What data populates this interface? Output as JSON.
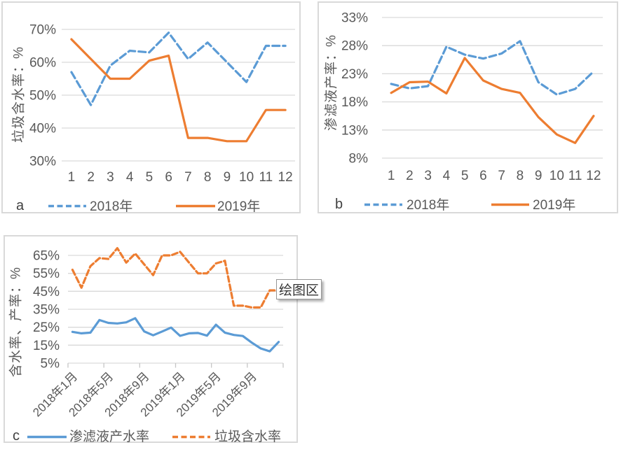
{
  "tooltip": {
    "label": "绘图区"
  },
  "colors": {
    "series_blue": "#5B9BD5",
    "series_orange": "#ED7D31",
    "gridline": "#D9D9D9",
    "axis_text": "#595959",
    "tick_mark": "#C6C6C6"
  },
  "chart_data": [
    {
      "type": "line",
      "panel_label": "a",
      "ylabel": "垃圾含水率：%",
      "xlabel": "",
      "categories": [
        "1",
        "2",
        "3",
        "4",
        "5",
        "6",
        "7",
        "8",
        "9",
        "10",
        "11",
        "12"
      ],
      "yticks": [
        30,
        40,
        50,
        60,
        70
      ],
      "ylim": [
        30,
        70
      ],
      "grid": true,
      "legend_position": "bottom",
      "series": [
        {
          "name": "2018年",
          "color": "#5B9BD5",
          "dashed": true,
          "values": [
            57,
            47,
            59,
            63.5,
            63,
            69,
            61,
            66,
            60,
            54,
            65,
            65
          ]
        },
        {
          "name": "2019年",
          "color": "#ED7D31",
          "dashed": false,
          "values": [
            67,
            61,
            55,
            55,
            60.5,
            62,
            37,
            37,
            36,
            36,
            45.5,
            45.5
          ]
        }
      ]
    },
    {
      "type": "line",
      "panel_label": "b",
      "ylabel": "渗滤液产率：%",
      "xlabel": "",
      "categories": [
        "1",
        "2",
        "3",
        "4",
        "5",
        "6",
        "7",
        "8",
        "9",
        "10",
        "11",
        "12"
      ],
      "yticks": [
        8,
        13,
        18,
        23,
        28,
        33
      ],
      "ylim": [
        8,
        33
      ],
      "grid": true,
      "legend_position": "bottom",
      "series": [
        {
          "name": "2018年",
          "color": "#5B9BD5",
          "dashed": true,
          "values": [
            21.2,
            20.4,
            20.8,
            27.8,
            26.4,
            25.7,
            26.6,
            28.8,
            21.5,
            19.3,
            20.3,
            23.4
          ]
        },
        {
          "name": "2019年",
          "color": "#ED7D31",
          "dashed": false,
          "values": [
            19.6,
            21.5,
            21.6,
            19.5,
            25.8,
            21.8,
            20.3,
            19.6,
            15.3,
            12.2,
            10.7,
            15.5
          ]
        }
      ]
    },
    {
      "type": "line",
      "panel_label": "c",
      "ylabel": "含水率、产率：%",
      "xlabel": "",
      "n_points": 24,
      "xtick_labels": [
        "2018年1月",
        "2018年5月",
        "2018年9月",
        "2019年1月",
        "2019年5月",
        "2019年9月"
      ],
      "xtick_positions": [
        0,
        4,
        8,
        12,
        16,
        20
      ],
      "yticks": [
        5,
        15,
        25,
        35,
        45,
        55,
        65
      ],
      "ylim": [
        5,
        65
      ],
      "grid": true,
      "legend_position": "bottom",
      "series": [
        {
          "name": "渗滤液产水率",
          "color": "#5B9BD5",
          "dashed": false,
          "values": [
            22.4,
            21.6,
            22,
            29,
            27.4,
            27.1,
            27.7,
            30,
            22.7,
            20.5,
            22.6,
            24.8,
            20.2,
            21.6,
            21.8,
            20.3,
            26.4,
            22,
            20.7,
            20.1,
            16.4,
            13.2,
            11.6,
            16.8
          ]
        },
        {
          "name": "垃圾含水率",
          "color": "#ED7D31",
          "dashed": true,
          "values": [
            57,
            47,
            59,
            63.5,
            63,
            69,
            61,
            66,
            60,
            54,
            65,
            65,
            67,
            61,
            55,
            55,
            60.5,
            62,
            37,
            37,
            36,
            36,
            45.5,
            45.5
          ]
        }
      ]
    }
  ]
}
